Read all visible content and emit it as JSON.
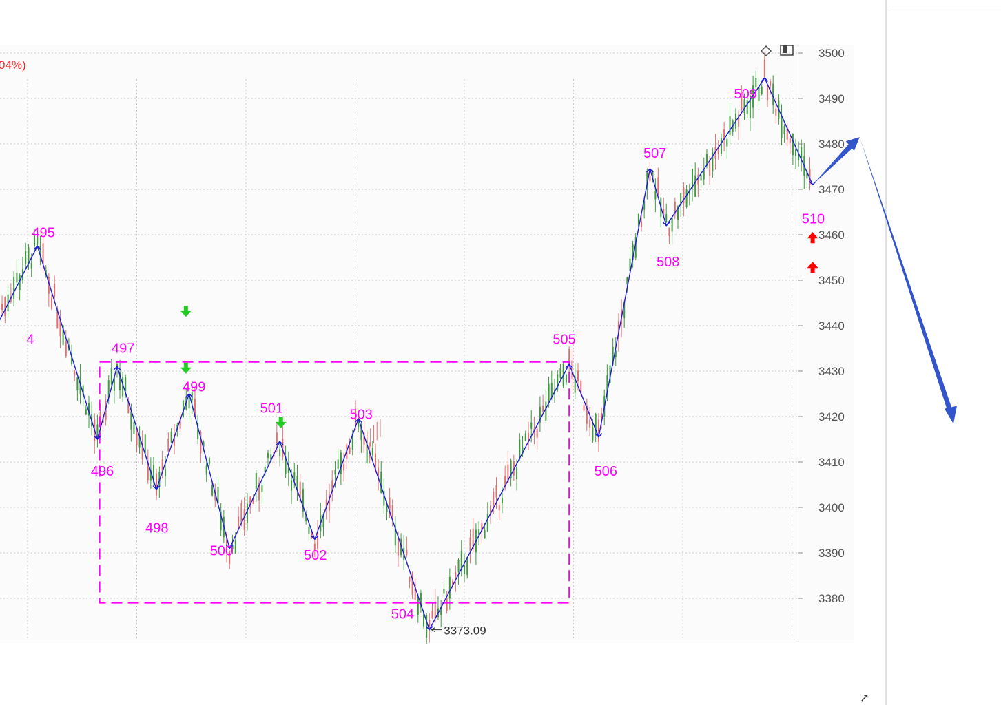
{
  "chart_data": {
    "type": "line",
    "title": "",
    "header_fragment": "04%)",
    "xlabel": "",
    "ylabel": "",
    "ylim": [
      3371,
      3502
    ],
    "y_ticks": [
      3380,
      3390,
      3400,
      3410,
      3420,
      3430,
      3440,
      3450,
      3460,
      3470,
      3480,
      3490,
      3500
    ],
    "y_tick_labels": [
      "3380",
      "3390",
      "3400",
      "3410",
      "3420",
      "3430",
      "3440",
      "3450",
      "3460",
      "3470",
      "3480",
      "3490",
      "3500"
    ],
    "grid": true,
    "colors": {
      "wave": "#1d1dd6",
      "label": "#ff00ff",
      "box": "#ff00ff",
      "candle_up": "#e07070",
      "candle_down": "#3e9a3e",
      "sell_arrow": "#22cc22",
      "buy_arrow": "#ff0000",
      "projection": "#3355cc"
    },
    "wave_points": [
      {
        "id": "495",
        "t": 0.45,
        "y": 3457.5
      },
      {
        "id": "496",
        "t": 3.2,
        "y": 3415
      },
      {
        "id": "497",
        "t": 4.1,
        "y": 3431
      },
      {
        "id": "498",
        "t": 5.9,
        "y": 3404
      },
      {
        "id": "499",
        "t": 7.4,
        "y": 3425
      },
      {
        "id": "500",
        "t": 9.25,
        "y": 3391
      },
      {
        "id": "501",
        "t": 11.55,
        "y": 3414.5
      },
      {
        "id": "502",
        "t": 13.15,
        "y": 3393
      },
      {
        "id": "503",
        "t": 15.15,
        "y": 3419.5
      },
      {
        "id": "504",
        "t": 18.4,
        "y": 3373.09
      },
      {
        "id": "505",
        "t": 24.8,
        "y": 3431.5
      },
      {
        "id": "506",
        "t": 26.15,
        "y": 3415.5
      },
      {
        "id": "507",
        "t": 28.5,
        "y": 3474.5
      },
      {
        "id": "508",
        "t": 29.25,
        "y": 3462
      },
      {
        "id": "509",
        "t": 33.75,
        "y": 3494.5
      },
      {
        "id": "510",
        "t": 35.95,
        "y": 3471
      }
    ],
    "wave_labels": [
      {
        "text": "495",
        "t": 0.2,
        "y": 3459.5
      },
      {
        "text": "4",
        "t": -0.05,
        "y": 3436
      },
      {
        "text": "496",
        "t": 2.9,
        "y": 3407
      },
      {
        "text": "497",
        "t": 3.85,
        "y": 3434
      },
      {
        "text": "498",
        "t": 5.4,
        "y": 3394.5
      },
      {
        "text": "499",
        "t": 7.1,
        "y": 3425.5
      },
      {
        "text": "500",
        "t": 8.35,
        "y": 3389.5
      },
      {
        "text": "501",
        "t": 10.65,
        "y": 3420.8
      },
      {
        "text": "502",
        "t": 12.65,
        "y": 3388.5
      },
      {
        "text": "503",
        "t": 14.75,
        "y": 3419.5
      },
      {
        "text": "504",
        "t": 16.65,
        "y": 3375.5
      },
      {
        "text": "505",
        "t": 24.05,
        "y": 3436
      },
      {
        "text": "506",
        "t": 25.95,
        "y": 3407
      },
      {
        "text": "507",
        "t": 28.2,
        "y": 3477
      },
      {
        "text": "508",
        "t": 28.8,
        "y": 3453
      },
      {
        "text": "509",
        "t": 32.35,
        "y": 3490
      },
      {
        "text": "510",
        "t": 35.45,
        "y": 3462.5
      }
    ],
    "low_marker": {
      "text": "3373.09",
      "t": 18.4,
      "y": 3373.09
    },
    "consolidation_box": {
      "t_start": 3.3,
      "t_end": 24.8,
      "y_top": 3432,
      "y_bottom": 3379
    },
    "sell_signals": [
      {
        "t": 7.25,
        "y": 3443
      },
      {
        "t": 7.25,
        "y": 3430.5
      },
      {
        "t": 11.6,
        "y": 3418.5
      }
    ],
    "buy_signals": [
      {
        "t": 35.95,
        "y": 3459.5
      },
      {
        "t": 35.95,
        "y": 3453
      }
    ],
    "projection": {
      "points": [
        {
          "t": 35.95,
          "y": 3471
        },
        {
          "t": 38.1,
          "y": 3481.5
        },
        {
          "t": 42.3,
          "y": 3419
        }
      ]
    }
  },
  "icons": {
    "toolbar": [
      "diamond-icon",
      "panel-icon"
    ],
    "corner": "resize-icon"
  },
  "resize_glyph": "↗"
}
